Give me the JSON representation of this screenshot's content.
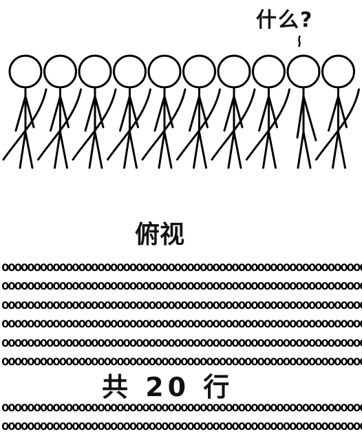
{
  "speech_text": "什么?",
  "top_view_label": "俯视",
  "row_count_label": "共 20 行",
  "crowd_figure_count": 10,
  "confused_figure_index": 8,
  "rows_above_label": 6,
  "rows_below_label": 2,
  "row_glyph": "o"
}
